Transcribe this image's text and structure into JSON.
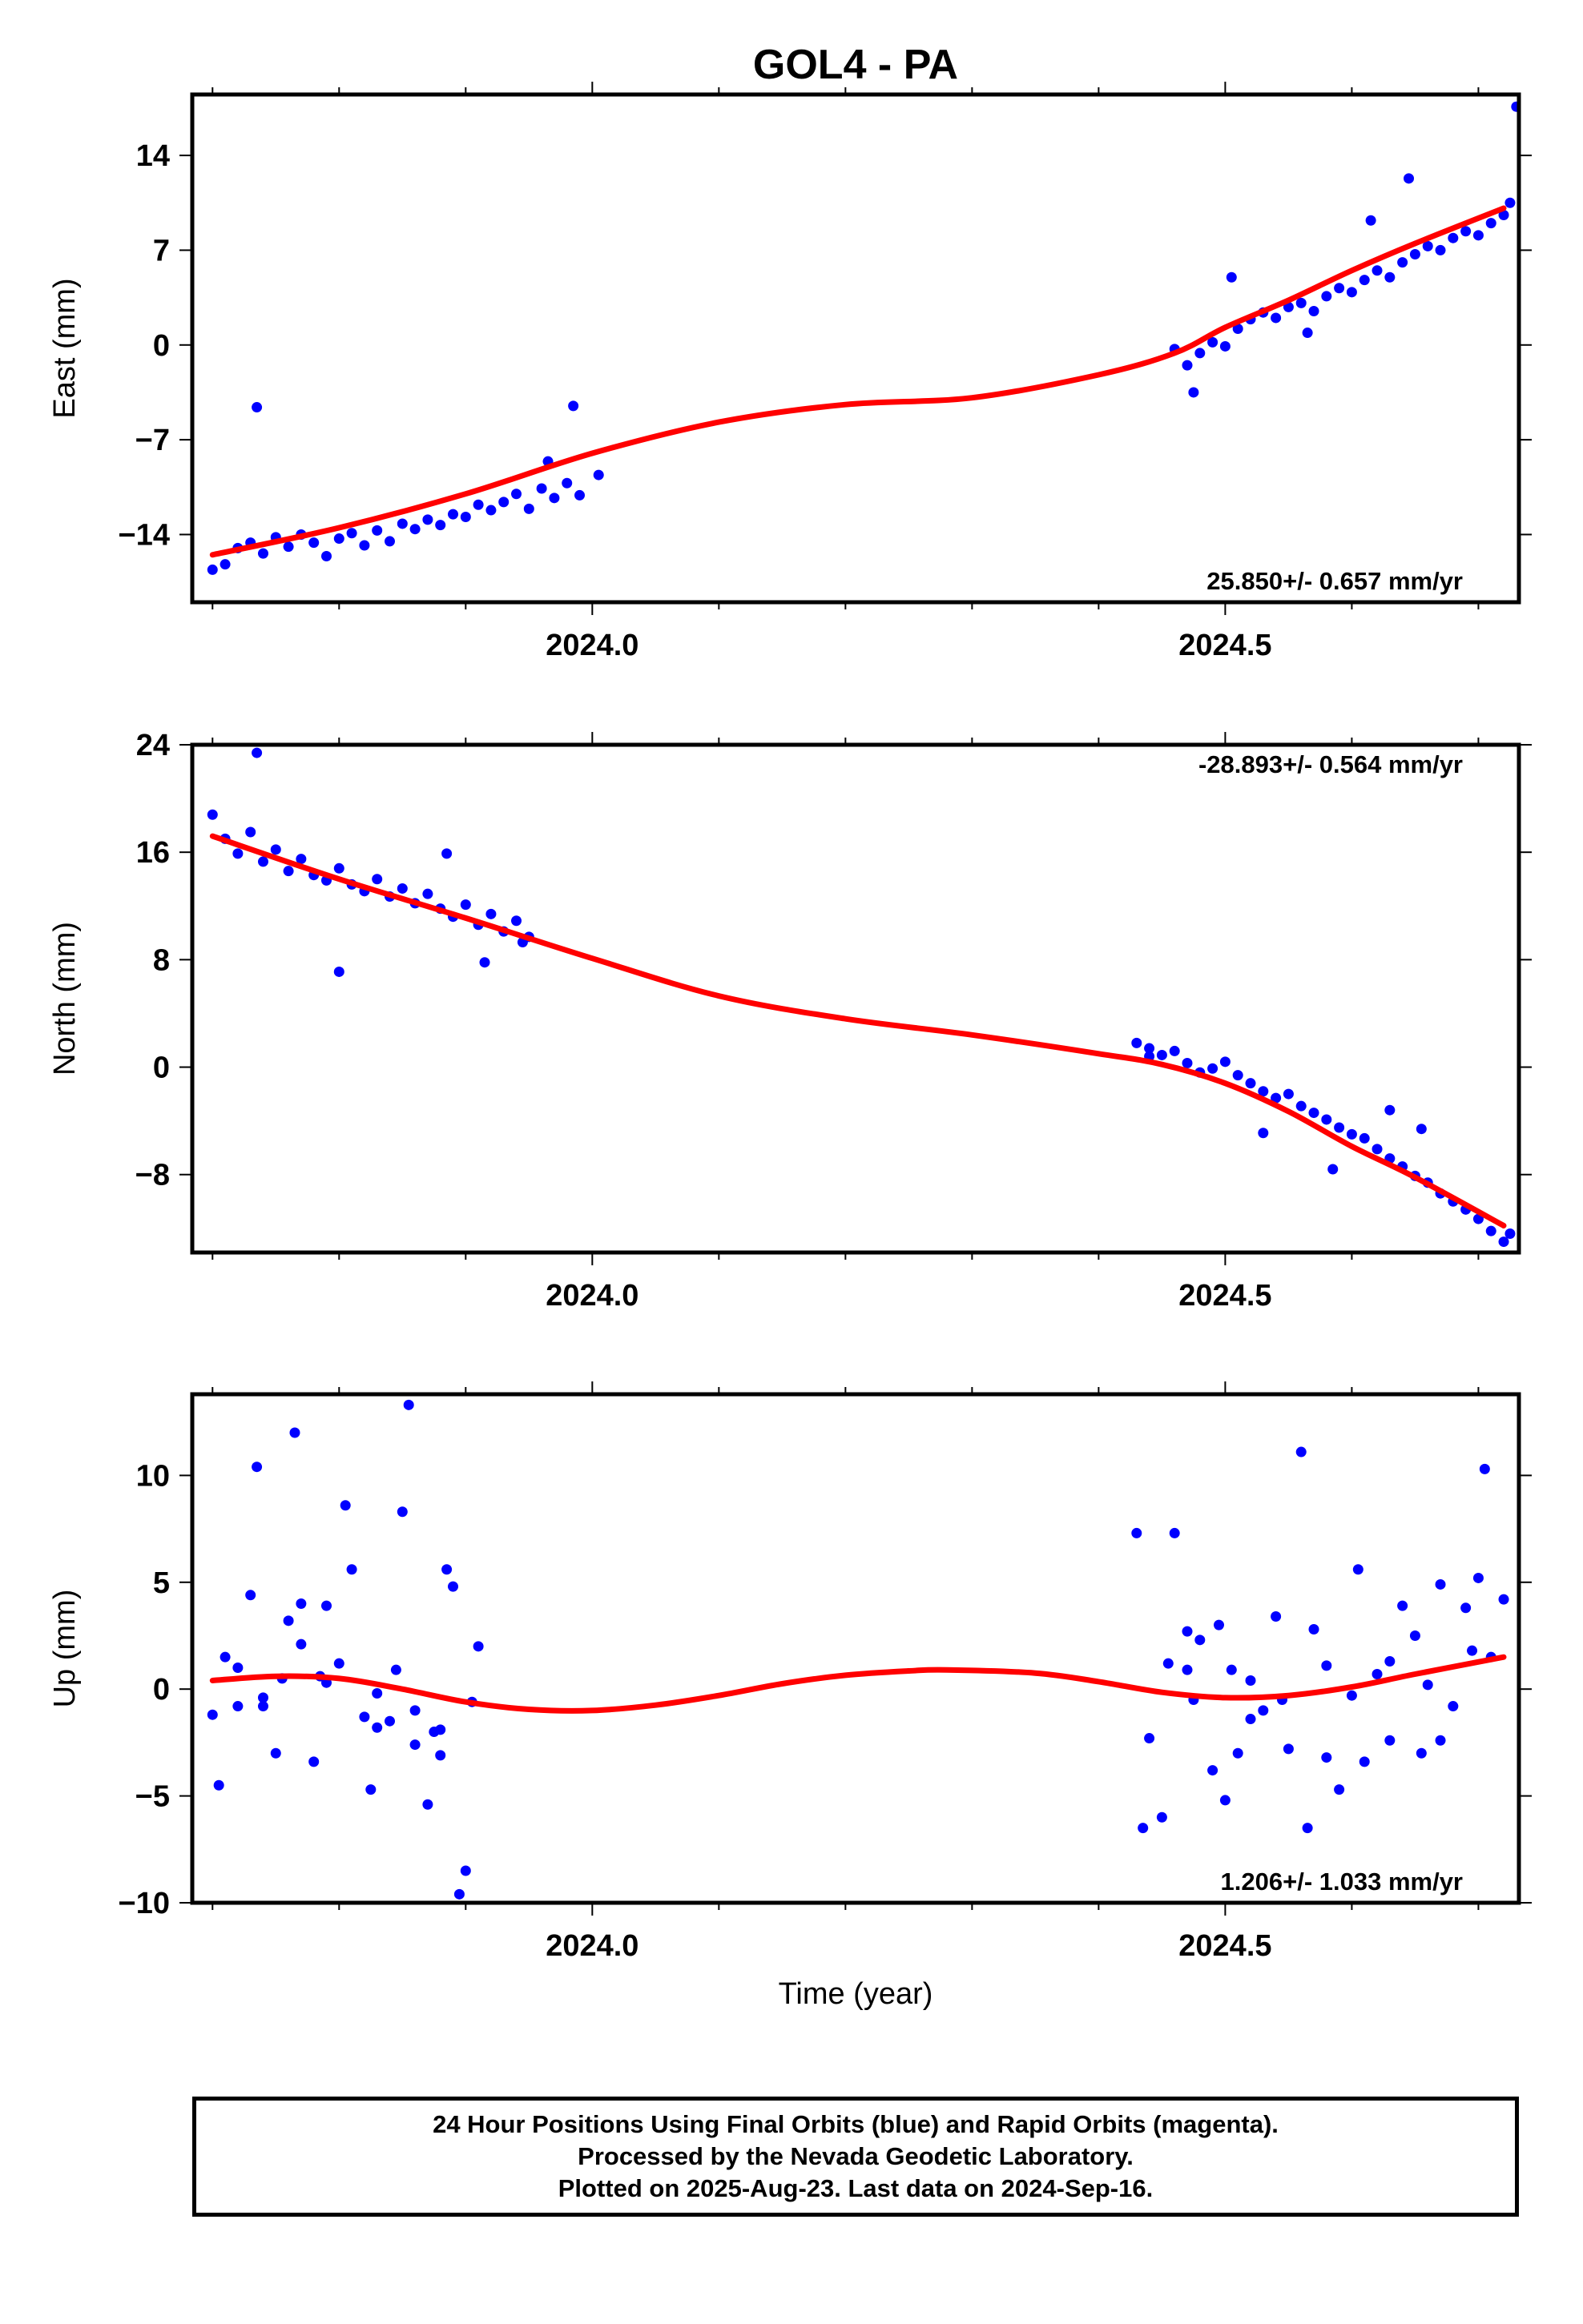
{
  "title": "GOL4 - PA",
  "xlabel": "Time (year)",
  "footer": {
    "line1": "24 Hour Positions Using Final Orbits (blue) and Rapid Orbits (magenta).",
    "line2": "Processed by the Nevada Geodetic Laboratory.",
    "line3": "Plotted on 2025-Aug-23. Last data on 2024-Sep-16."
  },
  "colors": {
    "points": "#0000ff",
    "fit": "#ff0000",
    "frame": "#000000"
  },
  "chart_data": [
    {
      "type": "scatter",
      "ylabel": "East (mm)",
      "rate": "25.850+/- 0.657 mm/yr",
      "rate_position": "bottom-right",
      "xlim": [
        2023.684,
        2024.732
      ],
      "ylim": [
        -19,
        18.5
      ],
      "xticks": [
        "2024.0",
        "2024.5"
      ],
      "yticks": [
        -14,
        -7,
        0,
        7,
        14
      ],
      "ytick_labels": [
        "−14",
        "−7",
        "0",
        "7",
        "14"
      ],
      "points": [
        [
          2023.7,
          -16.6
        ],
        [
          2023.71,
          -16.2
        ],
        [
          2023.72,
          -15.0
        ],
        [
          2023.73,
          -14.6
        ],
        [
          2023.74,
          -15.4
        ],
        [
          2023.75,
          -14.2
        ],
        [
          2023.76,
          -14.9
        ],
        [
          2023.77,
          -14.0
        ],
        [
          2023.78,
          -14.6
        ],
        [
          2023.79,
          -15.6
        ],
        [
          2023.8,
          -14.3
        ],
        [
          2023.81,
          -13.9
        ],
        [
          2023.82,
          -14.8
        ],
        [
          2023.83,
          -13.7
        ],
        [
          2023.84,
          -14.5
        ],
        [
          2023.85,
          -13.2
        ],
        [
          2023.86,
          -13.6
        ],
        [
          2023.87,
          -12.9
        ],
        [
          2023.88,
          -13.3
        ],
        [
          2023.89,
          -12.5
        ],
        [
          2023.9,
          -12.7
        ],
        [
          2023.91,
          -11.8
        ],
        [
          2023.92,
          -12.2
        ],
        [
          2023.93,
          -11.6
        ],
        [
          2023.94,
          -11.0
        ],
        [
          2023.95,
          -12.1
        ],
        [
          2023.96,
          -10.6
        ],
        [
          2023.97,
          -11.3
        ],
        [
          2023.98,
          -10.2
        ],
        [
          2023.99,
          -11.1
        ],
        [
          2023.735,
          -4.6
        ],
        [
          2023.985,
          -4.5
        ],
        [
          2023.965,
          -8.6
        ],
        [
          2024.005,
          -9.6
        ],
        [
          2024.46,
          -0.3
        ],
        [
          2024.47,
          -1.5
        ],
        [
          2024.48,
          -0.6
        ],
        [
          2024.49,
          0.2
        ],
        [
          2024.5,
          -0.1
        ],
        [
          2024.51,
          1.2
        ],
        [
          2024.52,
          1.9
        ],
        [
          2024.53,
          2.4
        ],
        [
          2024.54,
          2.0
        ],
        [
          2024.55,
          2.8
        ],
        [
          2024.56,
          3.1
        ],
        [
          2024.57,
          2.5
        ],
        [
          2024.58,
          3.6
        ],
        [
          2024.59,
          4.2
        ],
        [
          2024.6,
          3.9
        ],
        [
          2024.61,
          4.8
        ],
        [
          2024.62,
          5.5
        ],
        [
          2024.63,
          5.0
        ],
        [
          2024.64,
          6.1
        ],
        [
          2024.65,
          6.7
        ],
        [
          2024.66,
          7.3
        ],
        [
          2024.67,
          7.0
        ],
        [
          2024.68,
          7.9
        ],
        [
          2024.69,
          8.4
        ],
        [
          2024.7,
          8.1
        ],
        [
          2024.71,
          9.0
        ],
        [
          2024.72,
          9.6
        ],
        [
          2024.725,
          10.5
        ],
        [
          2024.505,
          5.0
        ],
        [
          2024.645,
          12.3
        ],
        [
          2024.73,
          17.6
        ],
        [
          2024.475,
          -3.5
        ],
        [
          2024.565,
          0.9
        ],
        [
          2024.615,
          9.2
        ]
      ],
      "fit_x": [
        2023.7,
        2023.8,
        2023.9,
        2024.0,
        2024.1,
        2024.2,
        2024.3,
        2024.4,
        2024.46,
        2024.5,
        2024.55,
        2024.6,
        2024.65,
        2024.72
      ],
      "fit_y": [
        -15.5,
        -13.5,
        -11.0,
        -8.0,
        -5.7,
        -4.4,
        -3.9,
        -2.2,
        -0.6,
        1.3,
        3.3,
        5.5,
        7.5,
        10.1
      ]
    },
    {
      "type": "scatter",
      "ylabel": "North (mm)",
      "rate": "-28.893+/- 0.564 mm/yr",
      "rate_position": "top-right",
      "xlim": [
        2023.684,
        2024.732
      ],
      "ylim": [
        -13.8,
        24
      ],
      "xticks": [
        "2024.0",
        "2024.5"
      ],
      "yticks": [
        -8,
        0,
        8,
        16,
        24
      ],
      "ytick_labels": [
        "−8",
        "0",
        "8",
        "16",
        "24"
      ],
      "points": [
        [
          2023.7,
          18.8
        ],
        [
          2023.71,
          17.0
        ],
        [
          2023.72,
          15.9
        ],
        [
          2023.73,
          17.5
        ],
        [
          2023.74,
          15.3
        ],
        [
          2023.75,
          16.2
        ],
        [
          2023.76,
          14.6
        ],
        [
          2023.77,
          15.5
        ],
        [
          2023.78,
          14.3
        ],
        [
          2023.79,
          13.9
        ],
        [
          2023.8,
          14.8
        ],
        [
          2023.81,
          13.6
        ],
        [
          2023.82,
          13.1
        ],
        [
          2023.83,
          14.0
        ],
        [
          2023.84,
          12.7
        ],
        [
          2023.85,
          13.3
        ],
        [
          2023.86,
          12.2
        ],
        [
          2023.87,
          12.9
        ],
        [
          2023.88,
          11.8
        ],
        [
          2023.89,
          11.2
        ],
        [
          2023.9,
          12.1
        ],
        [
          2023.91,
          10.6
        ],
        [
          2023.92,
          11.4
        ],
        [
          2023.93,
          10.1
        ],
        [
          2023.94,
          10.9
        ],
        [
          2023.95,
          9.7
        ],
        [
          2023.735,
          23.4
        ],
        [
          2023.8,
          7.1
        ],
        [
          2023.885,
          15.9
        ],
        [
          2023.915,
          7.8
        ],
        [
          2023.945,
          9.3
        ],
        [
          2024.43,
          1.8
        ],
        [
          2024.44,
          1.4
        ],
        [
          2024.45,
          0.9
        ],
        [
          2024.46,
          1.2
        ],
        [
          2024.47,
          0.3
        ],
        [
          2024.48,
          -0.4
        ],
        [
          2024.49,
          -0.1
        ],
        [
          2024.5,
          0.4
        ],
        [
          2024.51,
          -0.6
        ],
        [
          2024.52,
          -1.2
        ],
        [
          2024.53,
          -1.8
        ],
        [
          2024.54,
          -2.3
        ],
        [
          2024.55,
          -2.0
        ],
        [
          2024.56,
          -2.9
        ],
        [
          2024.57,
          -3.4
        ],
        [
          2024.58,
          -3.9
        ],
        [
          2024.59,
          -4.5
        ],
        [
          2024.6,
          -5.0
        ],
        [
          2024.61,
          -5.3
        ],
        [
          2024.62,
          -6.1
        ],
        [
          2024.63,
          -6.8
        ],
        [
          2024.64,
          -7.4
        ],
        [
          2024.65,
          -8.1
        ],
        [
          2024.66,
          -8.6
        ],
        [
          2024.67,
          -9.4
        ],
        [
          2024.68,
          -10.0
        ],
        [
          2024.69,
          -10.6
        ],
        [
          2024.7,
          -11.3
        ],
        [
          2024.71,
          -12.2
        ],
        [
          2024.72,
          -13.0
        ],
        [
          2024.725,
          -12.4
        ],
        [
          2024.53,
          -4.9
        ],
        [
          2024.585,
          -7.6
        ],
        [
          2024.63,
          -3.2
        ],
        [
          2024.655,
          -4.6
        ],
        [
          2024.44,
          0.8
        ]
      ],
      "fit_x": [
        2023.7,
        2023.8,
        2023.9,
        2024.0,
        2024.1,
        2024.2,
        2024.3,
        2024.4,
        2024.45,
        2024.5,
        2024.55,
        2024.6,
        2024.65,
        2024.72
      ],
      "fit_y": [
        17.2,
        14.0,
        11.1,
        8.1,
        5.3,
        3.6,
        2.4,
        1.0,
        0.2,
        -1.2,
        -3.3,
        -5.9,
        -8.2,
        -11.8
      ]
    },
    {
      "type": "scatter",
      "ylabel": "Up (mm)",
      "rate": "1.206+/- 1.033 mm/yr",
      "rate_position": "bottom-right",
      "xlim": [
        2023.684,
        2024.732
      ],
      "ylim": [
        -10,
        13.8
      ],
      "xticks": [
        "2024.0",
        "2024.5"
      ],
      "yticks": [
        -10,
        -5,
        0,
        5,
        10
      ],
      "ytick_labels": [
        "−10",
        "−5",
        "0",
        "5",
        "10"
      ],
      "points": [
        [
          2023.7,
          -1.2
        ],
        [
          2023.705,
          -4.5
        ],
        [
          2023.71,
          1.5
        ],
        [
          2023.72,
          -0.8
        ],
        [
          2023.73,
          4.4
        ],
        [
          2023.735,
          10.4
        ],
        [
          2023.74,
          -0.4
        ],
        [
          2023.75,
          -3.0
        ],
        [
          2023.755,
          0.5
        ],
        [
          2023.76,
          3.2
        ],
        [
          2023.765,
          12.0
        ],
        [
          2023.77,
          4.0
        ],
        [
          2023.78,
          -3.4
        ],
        [
          2023.785,
          0.6
        ],
        [
          2023.79,
          3.9
        ],
        [
          2023.8,
          1.2
        ],
        [
          2023.805,
          8.6
        ],
        [
          2023.81,
          5.6
        ],
        [
          2023.82,
          -1.3
        ],
        [
          2023.825,
          -4.7
        ],
        [
          2023.83,
          -1.8
        ],
        [
          2023.84,
          -1.5
        ],
        [
          2023.845,
          0.9
        ],
        [
          2023.85,
          8.3
        ],
        [
          2023.855,
          13.3
        ],
        [
          2023.86,
          -2.6
        ],
        [
          2023.87,
          -5.4
        ],
        [
          2023.875,
          -2.0
        ],
        [
          2023.88,
          -3.1
        ],
        [
          2023.885,
          5.6
        ],
        [
          2023.89,
          4.8
        ],
        [
          2023.895,
          -9.6
        ],
        [
          2023.9,
          -8.5
        ],
        [
          2023.905,
          -0.6
        ],
        [
          2023.91,
          2.0
        ],
        [
          2023.72,
          1.0
        ],
        [
          2023.74,
          -0.8
        ],
        [
          2023.77,
          2.1
        ],
        [
          2023.79,
          0.3
        ],
        [
          2023.83,
          -0.2
        ],
        [
          2023.86,
          -1.0
        ],
        [
          2023.88,
          -1.9
        ],
        [
          2024.43,
          7.3
        ],
        [
          2024.435,
          -6.5
        ],
        [
          2024.44,
          -2.3
        ],
        [
          2024.45,
          -6.0
        ],
        [
          2024.455,
          1.2
        ],
        [
          2024.46,
          7.3
        ],
        [
          2024.47,
          2.7
        ],
        [
          2024.475,
          -0.5
        ],
        [
          2024.48,
          2.3
        ],
        [
          2024.49,
          -3.8
        ],
        [
          2024.495,
          3.0
        ],
        [
          2024.5,
          -5.2
        ],
        [
          2024.505,
          0.9
        ],
        [
          2024.51,
          -3.0
        ],
        [
          2024.52,
          0.4
        ],
        [
          2024.53,
          -1.0
        ],
        [
          2024.54,
          3.4
        ],
        [
          2024.545,
          -0.5
        ],
        [
          2024.55,
          -2.8
        ],
        [
          2024.56,
          11.1
        ],
        [
          2024.565,
          -6.5
        ],
        [
          2024.57,
          2.8
        ],
        [
          2024.58,
          -3.2
        ],
        [
          2024.59,
          -4.7
        ],
        [
          2024.6,
          -0.3
        ],
        [
          2024.605,
          5.6
        ],
        [
          2024.61,
          -3.4
        ],
        [
          2024.62,
          0.7
        ],
        [
          2024.63,
          -2.4
        ],
        [
          2024.64,
          3.9
        ],
        [
          2024.65,
          2.5
        ],
        [
          2024.655,
          -3.0
        ],
        [
          2024.66,
          0.2
        ],
        [
          2024.67,
          4.9
        ],
        [
          2024.68,
          -0.8
        ],
        [
          2024.69,
          3.8
        ],
        [
          2024.7,
          5.2
        ],
        [
          2024.705,
          10.3
        ],
        [
          2024.71,
          1.5
        ],
        [
          2024.72,
          4.2
        ],
        [
          2024.47,
          0.9
        ],
        [
          2024.52,
          -1.4
        ],
        [
          2024.58,
          1.1
        ],
        [
          2024.63,
          1.3
        ],
        [
          2024.67,
          -2.4
        ],
        [
          2024.695,
          1.8
        ]
      ],
      "fit_x": [
        2023.7,
        2023.75,
        2023.8,
        2023.85,
        2023.9,
        2023.95,
        2024.0,
        2024.05,
        2024.1,
        2024.15,
        2024.2,
        2024.25,
        2024.28,
        2024.35,
        2024.4,
        2024.45,
        2024.5,
        2024.55,
        2024.6,
        2024.65,
        2024.72
      ],
      "fit_y": [
        0.4,
        0.6,
        0.5,
        0.0,
        -0.6,
        -0.95,
        -1.0,
        -0.75,
        -0.3,
        0.25,
        0.65,
        0.85,
        0.9,
        0.75,
        0.35,
        -0.15,
        -0.4,
        -0.3,
        0.1,
        0.7,
        1.5
      ]
    }
  ]
}
